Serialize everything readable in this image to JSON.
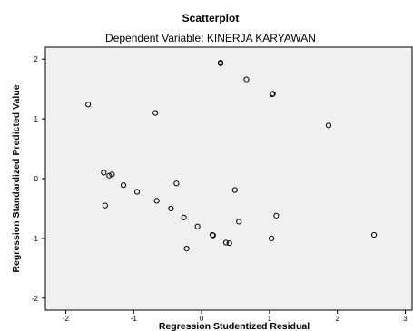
{
  "chart_data": {
    "type": "scatter",
    "title": "Scatterplot",
    "subtitle": "Dependent Variable: KINERJA KARYAWAN",
    "xlabel": "Regression Studentized Residual",
    "ylabel": "Regression Standardized Predicted Value",
    "xlim": [
      -2.3,
      3.1
    ],
    "ylim": [
      -2.2,
      2.2
    ],
    "xticks": [
      -2,
      -1,
      0,
      1,
      2,
      3
    ],
    "yticks": [
      -2,
      -1,
      0,
      1,
      2
    ],
    "grid": false,
    "colors": {
      "plot_bg": "#f0f0f0",
      "marker": "#000000",
      "axis": "#000000"
    },
    "points": [
      {
        "x": 0.28,
        "y": 1.93
      },
      {
        "x": 0.28,
        "y": 1.94
      },
      {
        "x": 0.66,
        "y": 1.66
      },
      {
        "x": 1.04,
        "y": 1.41
      },
      {
        "x": 1.05,
        "y": 1.42
      },
      {
        "x": -1.67,
        "y": 1.24
      },
      {
        "x": -0.68,
        "y": 1.1
      },
      {
        "x": 1.87,
        "y": 0.89
      },
      {
        "x": -1.44,
        "y": 0.1
      },
      {
        "x": -1.36,
        "y": 0.05
      },
      {
        "x": -1.32,
        "y": 0.07
      },
      {
        "x": -1.15,
        "y": -0.11
      },
      {
        "x": -0.95,
        "y": -0.22
      },
      {
        "x": -0.37,
        "y": -0.08
      },
      {
        "x": 0.49,
        "y": -0.19
      },
      {
        "x": -1.42,
        "y": -0.45
      },
      {
        "x": -0.66,
        "y": -0.37
      },
      {
        "x": -0.45,
        "y": -0.5
      },
      {
        "x": -0.26,
        "y": -0.65
      },
      {
        "x": 1.1,
        "y": -0.62
      },
      {
        "x": 0.55,
        "y": -0.72
      },
      {
        "x": -0.06,
        "y": -0.8
      },
      {
        "x": 0.16,
        "y": -0.94
      },
      {
        "x": 0.17,
        "y": -0.95
      },
      {
        "x": 1.03,
        "y": -1.0
      },
      {
        "x": 2.54,
        "y": -0.94
      },
      {
        "x": 0.36,
        "y": -1.07
      },
      {
        "x": 0.41,
        "y": -1.08
      },
      {
        "x": -0.22,
        "y": -1.17
      }
    ]
  }
}
